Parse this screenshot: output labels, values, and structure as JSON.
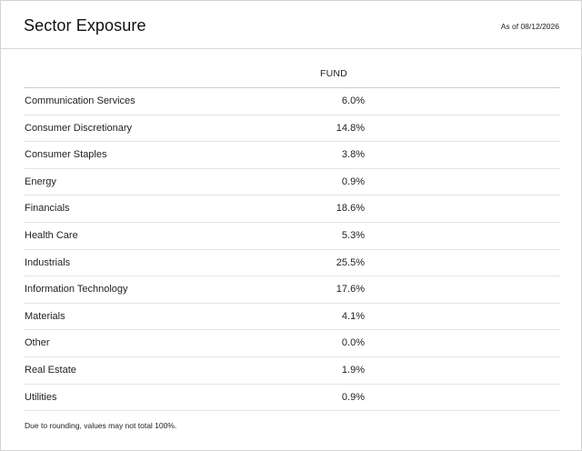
{
  "header": {
    "title": "Sector Exposure",
    "as_of": "As of 08/12/2026"
  },
  "table": {
    "column_header": "FUND",
    "rows": [
      {
        "sector": "Communication Services",
        "fund": "6.0%"
      },
      {
        "sector": "Consumer Discretionary",
        "fund": "14.8%"
      },
      {
        "sector": "Consumer Staples",
        "fund": "3.8%"
      },
      {
        "sector": "Energy",
        "fund": "0.9%"
      },
      {
        "sector": "Financials",
        "fund": "18.6%"
      },
      {
        "sector": "Health Care",
        "fund": "5.3%"
      },
      {
        "sector": "Industrials",
        "fund": "25.5%"
      },
      {
        "sector": "Information Technology",
        "fund": "17.6%"
      },
      {
        "sector": "Materials",
        "fund": "4.1%"
      },
      {
        "sector": "Other",
        "fund": "0.0%"
      },
      {
        "sector": "Real Estate",
        "fund": "1.9%"
      },
      {
        "sector": "Utilities",
        "fund": "0.9%"
      }
    ]
  },
  "footnote": "Due to rounding, values may not total 100%."
}
